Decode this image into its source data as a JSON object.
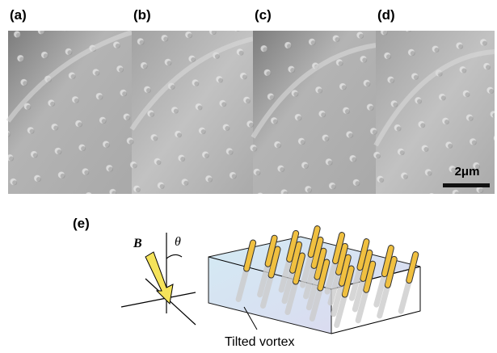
{
  "panels": [
    {
      "label": "(a)"
    },
    {
      "label": "(b)"
    },
    {
      "label": "(c)"
    },
    {
      "label": "(d)"
    }
  ],
  "scale_bar": "2μm",
  "diagram": {
    "label": "(e)",
    "field_label": "B",
    "angle_label": "θ",
    "caption": "Tilted vortex"
  }
}
